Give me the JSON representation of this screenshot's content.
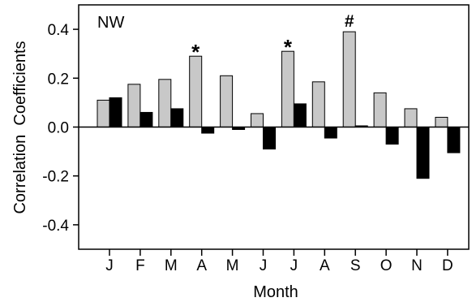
{
  "chart_data": {
    "type": "bar",
    "panel_label": "NW",
    "xlabel": "Month",
    "ylabel": "Correlation  Coefficients",
    "ylim": [
      -0.5,
      0.5
    ],
    "yticks": [
      -0.4,
      -0.2,
      0.0,
      0.2,
      0.4
    ],
    "ytick_labels": [
      "-0.4",
      "-0.2",
      "0.0",
      "0.2",
      "0.4"
    ],
    "categories": [
      "J",
      "F",
      "M",
      "A",
      "M",
      "J",
      "J",
      "A",
      "S",
      "O",
      "N",
      "D"
    ],
    "series": [
      {
        "color": "#c8c8c8",
        "values": [
          0.11,
          0.175,
          0.195,
          0.29,
          0.21,
          0.055,
          0.31,
          0.185,
          0.39,
          0.14,
          0.075,
          0.04
        ]
      },
      {
        "color": "#000000",
        "values": [
          0.12,
          0.06,
          0.075,
          -0.025,
          -0.01,
          -0.09,
          0.095,
          -0.045,
          0.005,
          -0.07,
          -0.21,
          -0.105
        ]
      }
    ],
    "annotations": [
      {
        "category_index": 3,
        "series_index": 0,
        "text": "*"
      },
      {
        "category_index": 6,
        "series_index": 0,
        "text": "*"
      },
      {
        "category_index": 8,
        "series_index": 0,
        "text": "#"
      }
    ],
    "grid": false,
    "zero_line": true
  }
}
